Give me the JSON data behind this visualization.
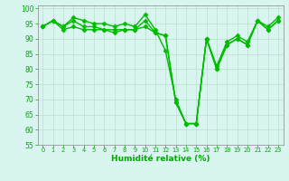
{
  "x": [
    0,
    1,
    2,
    3,
    4,
    5,
    6,
    7,
    8,
    9,
    10,
    11,
    12,
    13,
    14,
    15,
    16,
    17,
    18,
    19,
    20,
    21,
    22,
    23
  ],
  "series1": [
    94,
    96,
    94,
    97,
    96,
    95,
    95,
    94,
    95,
    94,
    98,
    93,
    86,
    70,
    62,
    62,
    90,
    81,
    89,
    91,
    89,
    96,
    94,
    97
  ],
  "series2": [
    94,
    96,
    94,
    96,
    94,
    94,
    93,
    93,
    93,
    93,
    96,
    92,
    91,
    69,
    62,
    62,
    90,
    80,
    88,
    90,
    88,
    96,
    93,
    96
  ],
  "series3": [
    94,
    96,
    93,
    94,
    93,
    93,
    93,
    92,
    93,
    93,
    94,
    92,
    91,
    69,
    62,
    62,
    90,
    80,
    88,
    90,
    88,
    96,
    93,
    96
  ],
  "line_color": "#00bb00",
  "marker": "D",
  "marker_size": 2.5,
  "xlabel": "Humidité relative (%)",
  "ylim": [
    55,
    101
  ],
  "yticks": [
    55,
    60,
    65,
    70,
    75,
    80,
    85,
    90,
    95,
    100
  ],
  "xlim": [
    -0.5,
    23.5
  ],
  "xticks": [
    0,
    1,
    2,
    3,
    4,
    5,
    6,
    7,
    8,
    9,
    10,
    11,
    12,
    13,
    14,
    15,
    16,
    17,
    18,
    19,
    20,
    21,
    22,
    23
  ],
  "bg_color": "#d8f5f0",
  "grid_color": "#bbddcc",
  "line_width": 1.0,
  "tick_color": "#00aa00",
  "label_color": "#00aa00"
}
